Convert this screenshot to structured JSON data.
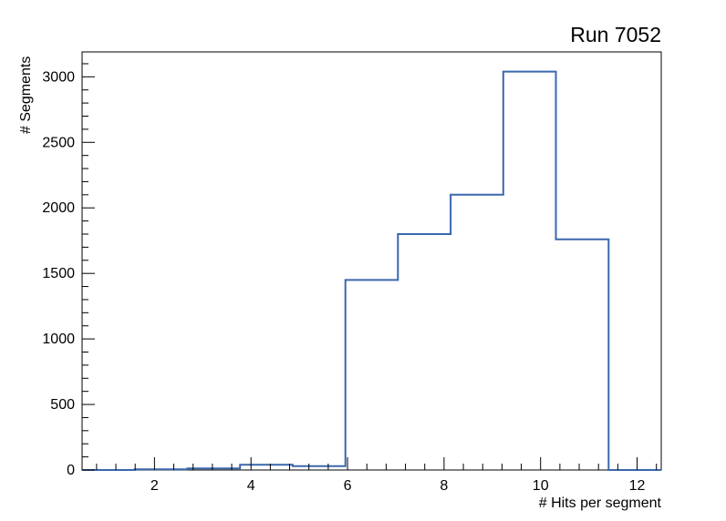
{
  "chart_data": {
    "type": "histogram-step",
    "title": "Run 7052",
    "xlabel": "# Hits per segment",
    "ylabel": "# Segments",
    "xlim": [
      0.5,
      12.5
    ],
    "ylim": [
      0,
      3190
    ],
    "bin_edges": [
      0.5,
      1.591,
      2.682,
      3.773,
      4.864,
      5.955,
      7.045,
      8.136,
      9.227,
      10.318,
      11.409,
      12.5
    ],
    "counts": [
      0,
      5,
      12,
      40,
      30,
      1450,
      1800,
      2100,
      3040,
      1760,
      0
    ],
    "x_major_ticks": [
      2,
      4,
      6,
      8,
      10,
      12
    ],
    "x_minor_step": 0.4,
    "y_major_ticks": [
      0,
      500,
      1000,
      1500,
      2000,
      2500,
      3000
    ],
    "y_minor_step": 100,
    "line_color": "#3a67ad",
    "frame_color": "#000000",
    "grid": false,
    "legend": null
  }
}
